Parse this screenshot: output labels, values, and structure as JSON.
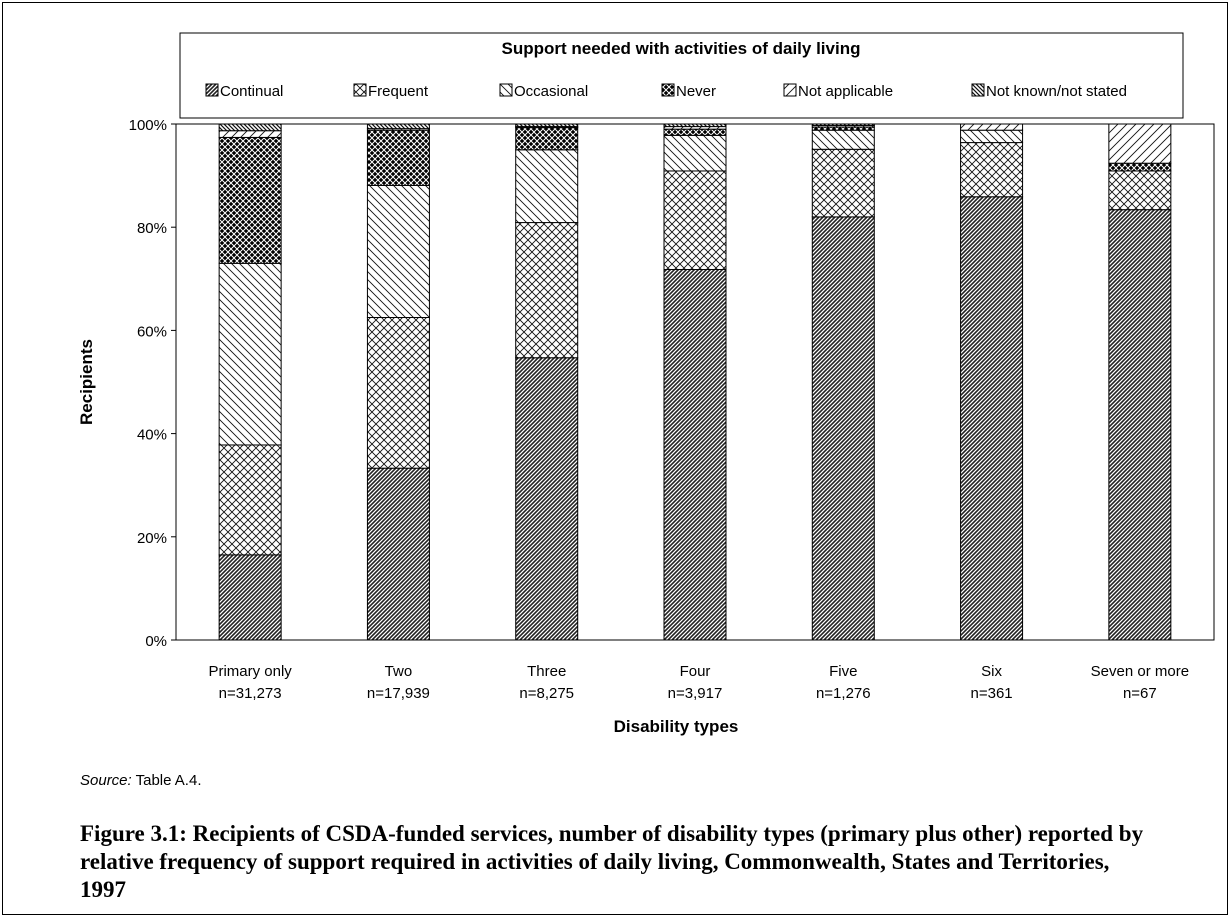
{
  "chart_data": {
    "type": "bar",
    "stacked": true,
    "title": "Support needed with activities of daily living",
    "xlabel": "Disability types",
    "ylabel": "Recipients",
    "ylim": [
      0,
      100
    ],
    "yticks": [
      "0%",
      "20%",
      "40%",
      "60%",
      "80%",
      "100%"
    ],
    "legend_placement": "top",
    "categories": [
      {
        "name": "Primary only",
        "n": "n=31,273"
      },
      {
        "name": "Two",
        "n": "n=17,939"
      },
      {
        "name": "Three",
        "n": "n=8,275"
      },
      {
        "name": "Four",
        "n": "n=3,917"
      },
      {
        "name": "Five",
        "n": "n=1,276"
      },
      {
        "name": "Six",
        "n": "n=361"
      },
      {
        "name": "Seven or more",
        "n": "n=67"
      }
    ],
    "series": [
      {
        "name": "Continual",
        "pattern": "dense-diagonal",
        "values": [
          16.5,
          33.3,
          54.7,
          71.8,
          82.0,
          85.9,
          83.4
        ]
      },
      {
        "name": "Frequent",
        "pattern": "crosshatch",
        "values": [
          21.3,
          29.2,
          26.2,
          19.1,
          13.1,
          10.5,
          7.5
        ]
      },
      {
        "name": "Occasional",
        "pattern": "back-diagonal",
        "values": [
          35.2,
          25.6,
          14.1,
          6.9,
          3.7,
          2.4,
          0.0
        ]
      },
      {
        "name": "Never",
        "pattern": "dark-crosshatch",
        "values": [
          24.4,
          10.7,
          4.3,
          1.2,
          0.6,
          0.0,
          1.5
        ]
      },
      {
        "name": "Not applicable",
        "pattern": "sparse-diagonal",
        "values": [
          1.3,
          0.3,
          0.2,
          0.5,
          0.3,
          1.2,
          7.6
        ]
      },
      {
        "name": "Not known/not stated",
        "pattern": "fine-back-diagonal",
        "values": [
          1.3,
          0.9,
          0.5,
          0.5,
          0.3,
          0.0,
          0.0
        ]
      }
    ]
  },
  "source": {
    "label": "Source:",
    "text": " Table A.4."
  },
  "caption": "Figure 3.1: Recipients of CSDA-funded services, number of disability types (primary plus other) reported by relative frequency of support required in activities of daily living, Commonwealth, States and Territories, 1997"
}
